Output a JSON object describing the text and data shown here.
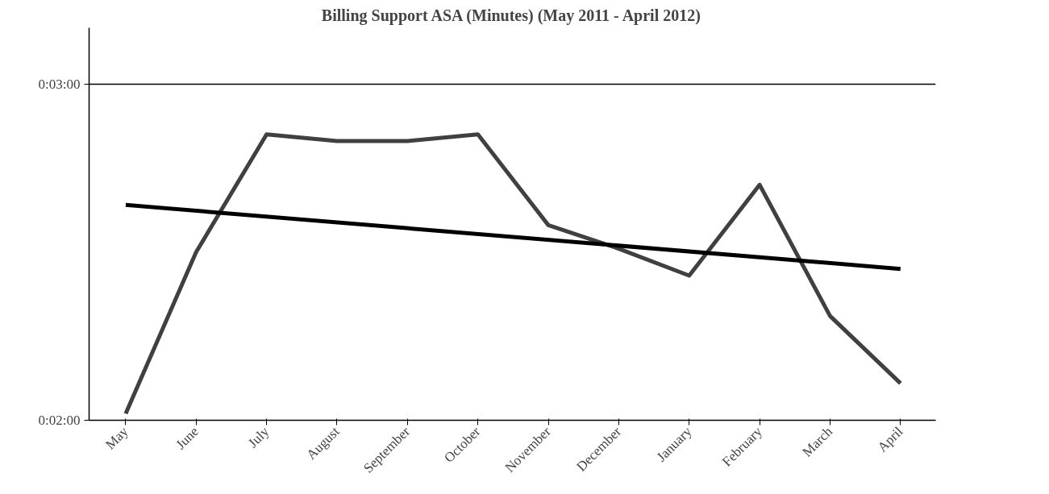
{
  "chart_data": {
    "type": "line",
    "title": "Billing Support ASA (Minutes) (May 2011 - April 2012)",
    "categories": [
      "May",
      "June",
      "July",
      "August",
      "September",
      "October",
      "November",
      "December",
      "January",
      "February",
      "March",
      "April"
    ],
    "series": [
      {
        "color": "#404040",
        "values": [
          2.02,
          2.5,
          2.85,
          2.83,
          2.83,
          2.85,
          2.58,
          2.51,
          2.43,
          2.7,
          2.31,
          2.11
        ]
      },
      {
        "type": "line",
        "color": "#000000",
        "x": [
          "May",
          "April"
        ],
        "values": [
          2.64,
          2.45
        ]
      }
    ],
    "ylim": [
      2,
      3.1667
    ],
    "yticks": [
      {
        "value": 2,
        "label": "0:02:00"
      },
      {
        "value": 3,
        "label": "0:03:00"
      }
    ],
    "grid": "y",
    "marker": "none",
    "line_style": "solid"
  }
}
